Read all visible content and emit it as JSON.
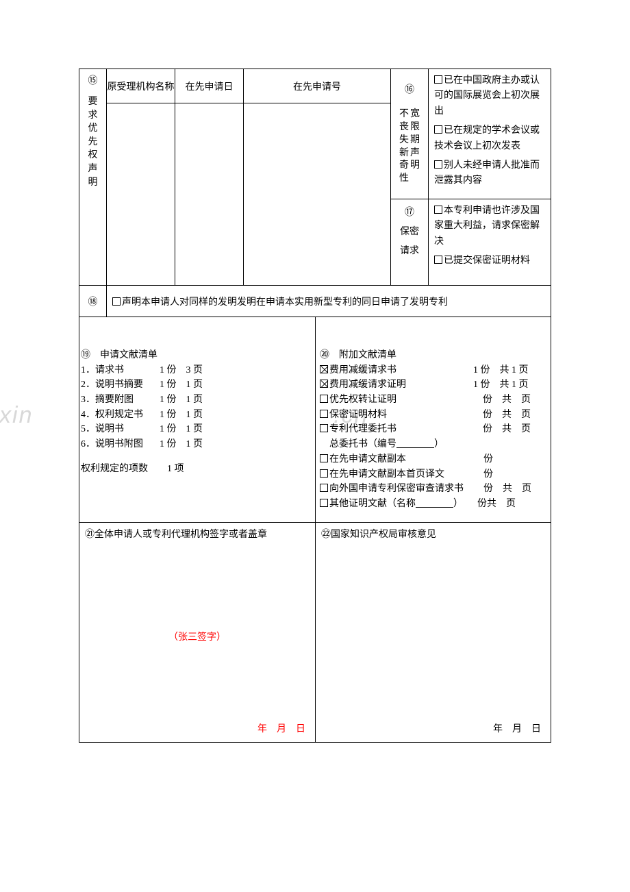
{
  "section15": {
    "num": "⑮",
    "label": "要求优先权声明",
    "headers": {
      "a": "原受理机构名称",
      "b": "在先申请日",
      "c": "在先申请号"
    }
  },
  "section16": {
    "num": "⑯",
    "label_col1": "不丧失新奇性",
    "label_col2": "宽限期声明",
    "items": [
      "已在中国政府主办或认可的国际展览会上初次展出",
      "已在规定的学术会议或技术会议上初次发表",
      "别人未经申请人批准而泄露其内容"
    ]
  },
  "section17": {
    "num": "⑰",
    "label1": "保密",
    "label2": "请求",
    "items": [
      "本专利申请也许涉及国家重大利益，请求保密解决",
      "已提交保密证明材料"
    ]
  },
  "section18": {
    "num": "⑱",
    "text": "声明本申请人对同样的发明发明在申请本实用新型专利的同日申请了发明专利"
  },
  "section19": {
    "num": "⑲",
    "title": "申请文献清单",
    "rows": [
      {
        "idx": "1．",
        "name": "请求书",
        "fen": "1 份",
        "pages": "3 页"
      },
      {
        "idx": "2．",
        "name": "说明书摘要",
        "fen": "1 份",
        "pages": "1 页"
      },
      {
        "idx": "3．",
        "name": "摘要附图",
        "fen": "1 份",
        "pages": "1 页"
      },
      {
        "idx": "4．",
        "name": "权利规定书",
        "fen": "1 份",
        "pages": "1 页"
      },
      {
        "idx": "5．",
        "name": "说明书",
        "fen": "1 份",
        "pages": "1 页"
      },
      {
        "idx": "6．",
        "name": "说明书附图",
        "fen": "1 份",
        "pages": "1 页"
      }
    ],
    "footer": "权利规定的项数　　1 项"
  },
  "section20": {
    "num": "⑳",
    "title": "附加文献清单",
    "rows": [
      {
        "chk": true,
        "name": "费用减缓请求书",
        "tail": "1 份　共 1 页"
      },
      {
        "chk": true,
        "name": "费用减缓请求证明",
        "tail": "1 份　共 1 页"
      },
      {
        "chk": false,
        "name": "优先权转让证明",
        "tail": "　份　共　页"
      },
      {
        "chk": false,
        "name": "保密证明材料",
        "tail": "　份　共　页"
      },
      {
        "chk": false,
        "name": "专利代理委托书",
        "tail": "　份　共　页"
      }
    ],
    "entrust_label": "总委托书（编号",
    "entrust_tail": "）",
    "rows2": [
      {
        "name": "在先申请文献副本",
        "tail": "份"
      },
      {
        "name": "在先申请文献副本首页译文",
        "tail": "份"
      },
      {
        "name": "向外国申请专利保密审查请求书",
        "tail": "份　共　页"
      }
    ],
    "other_label": "其他证明文献（名称",
    "other_tail": "）　　份共　页"
  },
  "section21": {
    "num": "㉑",
    "title": "全体申请人或专利代理机构签字或者盖章",
    "signature": "（张三签字）",
    "date": "年　月　日"
  },
  "section22": {
    "num": "㉒",
    "title": "国家知识产权局审核意见",
    "date": "年　月　日"
  },
  "watermark": {
    "a": "WWW.zixin",
    "b": ".cn"
  }
}
